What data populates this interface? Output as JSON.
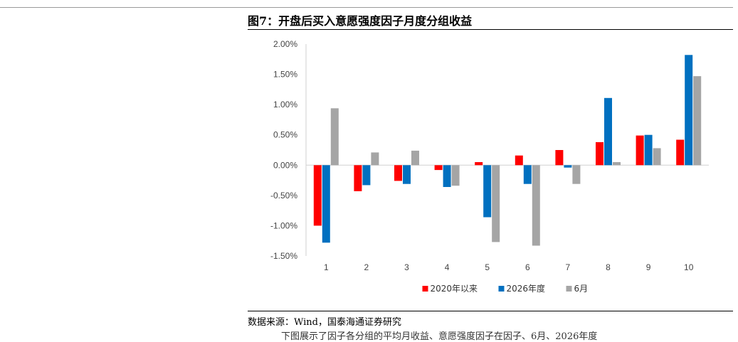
{
  "figure": {
    "title": "图7：开盘后买入意愿强度因子月度分组收益",
    "source": "数据来源：Wind，国泰海通证券研究",
    "footnote": "下图展示了因子各分组的平均月收益、意愿强度因子在因子、6月、2026年度"
  },
  "chart_data": {
    "type": "bar",
    "categories": [
      "1",
      "2",
      "3",
      "4",
      "5",
      "6",
      "7",
      "8",
      "9",
      "10"
    ],
    "series": [
      {
        "name": "2020年以来",
        "color": "#ff0000",
        "values": [
          -1.0,
          -0.43,
          -0.26,
          -0.08,
          0.05,
          0.16,
          0.25,
          0.38,
          0.49,
          0.42
        ]
      },
      {
        "name": "2026年度",
        "color": "#0070c0",
        "values": [
          -1.28,
          -0.33,
          -0.31,
          -0.36,
          -0.86,
          -0.31,
          -0.04,
          1.11,
          0.5,
          1.82
        ]
      },
      {
        "name": "6月",
        "color": "#a5a5a5",
        "values": [
          0.94,
          0.21,
          0.24,
          -0.34,
          -1.27,
          -1.33,
          -0.31,
          0.05,
          0.28,
          1.47
        ]
      }
    ],
    "ylim": [
      -1.5,
      2.0
    ],
    "yticks": [
      "-1.50%",
      "-1.00%",
      "-0.50%",
      "0.00%",
      "0.50%",
      "1.00%",
      "1.50%",
      "2.00%"
    ],
    "ytick_values": [
      -1.5,
      -1.0,
      -0.5,
      0.0,
      0.5,
      1.0,
      1.5,
      2.0
    ],
    "legend_position": "bottom",
    "grid": false,
    "title": "",
    "xlabel": "",
    "ylabel": ""
  }
}
